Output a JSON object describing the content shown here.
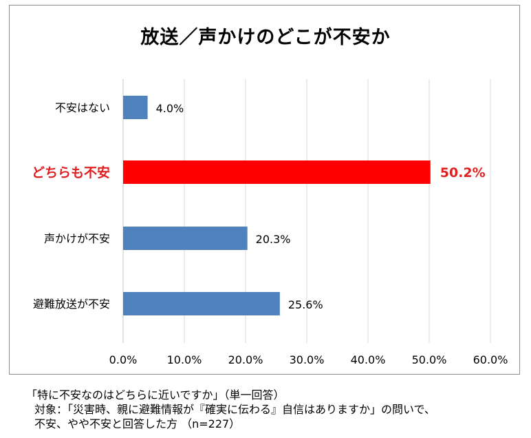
{
  "chart_data": {
    "type": "bar",
    "orientation": "horizontal",
    "title": "放送／声かけのどこが不安か",
    "categories": [
      "不安はない",
      "どちらも不安",
      "声かけが不安",
      "避難放送が不安"
    ],
    "values": [
      4.0,
      50.2,
      20.3,
      25.6
    ],
    "value_labels": [
      "4.0%",
      "50.2%",
      "20.3%",
      "25.6%"
    ],
    "highlight_index": 1,
    "xlim": [
      0,
      60
    ],
    "xticks": [
      "0.0%",
      "10.0%",
      "20.0%",
      "30.0%",
      "40.0%",
      "50.0%",
      "60.0%"
    ],
    "grid": true,
    "colors": {
      "bar": "#4f81bd",
      "highlight": "#ff0000",
      "highlight_text": "#e02020",
      "grid": "#d9d9d9"
    }
  },
  "notes": {
    "line1": "「特に不安なのはどちらに近いですか」（単一回答）",
    "line2": "対象：「災害時、親に避難情報が『確実に伝わる』自信はありますか」の問いで、",
    "line3": "不安、やや不安と回答した方 （n=227）"
  }
}
